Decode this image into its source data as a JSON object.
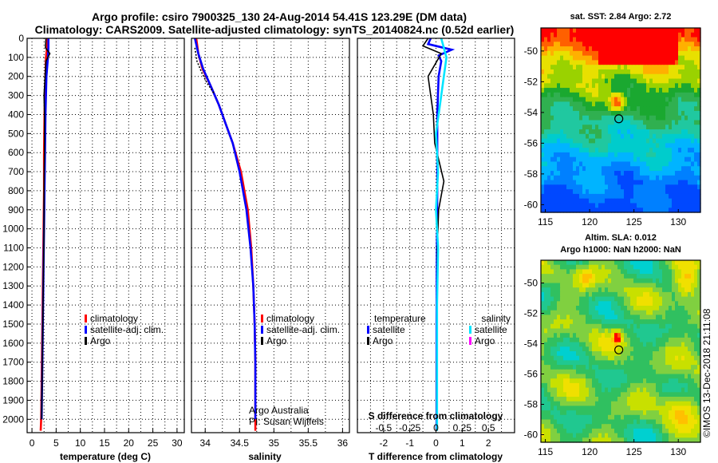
{
  "title_line1": "Argo profile: csiro 7900325_130 24-Aug-2014 54.41S 123.29E (DM data)",
  "title_line2": "Climatology: CARS2009. Satellite-adjusted climatology: synTS_20140824.nc (0.52d earlier)",
  "colors": {
    "climatology": "#ff0000",
    "satellite_adj": "#0000ff",
    "argo": "#000000",
    "salinity_satellite": "#00e5ff",
    "salinity_argo": "#ff00ff"
  },
  "chart_data": [
    {
      "type": "line",
      "name": "temperature",
      "xlabel": "temperature (deg C)",
      "ylabel": "",
      "xlim": [
        -1,
        31.5
      ],
      "ylim": [
        2070,
        0
      ],
      "xticks": [
        "0",
        "5",
        "10",
        "15",
        "20",
        "25",
        "30"
      ],
      "xtick_values": [
        0,
        5,
        10,
        15,
        20,
        25,
        30
      ],
      "yticks": [
        "0",
        "100",
        "200",
        "300",
        "400",
        "500",
        "600",
        "700",
        "800",
        "900",
        "1000",
        "1100",
        "1200",
        "1300",
        "1400",
        "1500",
        "1600",
        "1700",
        "1800",
        "1900",
        "2000"
      ],
      "legend": [
        "climatology",
        "satellite-adj. clim.",
        "Argo"
      ],
      "series": [
        {
          "name": "climatology",
          "color_key": "climatology",
          "x": [
            3.2,
            3.1,
            2.9,
            2.8,
            2.7,
            2.6,
            2.5,
            2.5,
            2.4,
            2.3,
            2.2,
            2.1,
            2.0,
            1.9,
            1.8
          ],
          "depth": [
            0,
            50,
            100,
            200,
            300,
            400,
            600,
            800,
            1000,
            1200,
            1400,
            1600,
            1800,
            2000,
            2060
          ]
        },
        {
          "name": "satellite-adj. clim.",
          "color_key": "satellite_adj",
          "x": [
            3.4,
            3.4,
            3.3,
            3.0,
            2.9,
            2.8,
            2.7,
            2.6,
            2.5,
            2.4,
            2.3,
            2.2,
            2.1,
            2.0
          ],
          "depth": [
            0,
            50,
            100,
            200,
            300,
            400,
            600,
            800,
            1000,
            1200,
            1400,
            1600,
            1800,
            2000
          ]
        },
        {
          "name": "Argo",
          "color_key": "argo",
          "x": [
            2.9,
            2.8,
            3.7,
            2.9,
            2.5,
            2.6,
            2.6,
            2.5,
            2.5,
            2.4,
            2.3,
            2.2,
            2.1,
            2.0
          ],
          "depth": [
            0,
            50,
            80,
            120,
            300,
            400,
            600,
            800,
            1000,
            1200,
            1400,
            1600,
            1800,
            2000
          ]
        }
      ]
    },
    {
      "type": "line",
      "name": "salinity",
      "xlabel": "salinity",
      "xlim": [
        33.8,
        36.1
      ],
      "ylim": [
        2070,
        0
      ],
      "xticks": [
        "34",
        "34.5",
        "35",
        "35.5",
        "36"
      ],
      "xtick_values": [
        34,
        34.5,
        35,
        35.5,
        36
      ],
      "legend": [
        "climatology",
        "satellite-adj. clim.",
        "Argo"
      ],
      "annotation": [
        "Argo Australia",
        "PI: Susan Wijffels"
      ],
      "series": [
        {
          "name": "climatology",
          "color_key": "climatology",
          "x": [
            33.87,
            33.9,
            33.96,
            34.08,
            34.2,
            34.3,
            34.4,
            34.52,
            34.62,
            34.67,
            34.7,
            34.72,
            34.73,
            34.73,
            34.73
          ],
          "depth": [
            0,
            80,
            160,
            250,
            350,
            450,
            550,
            700,
            900,
            1100,
            1300,
            1500,
            1700,
            1900,
            2060
          ]
        },
        {
          "name": "satellite-adj. clim.",
          "color_key": "satellite_adj",
          "x": [
            33.85,
            33.9,
            33.97,
            34.08,
            34.2,
            34.3,
            34.4,
            34.5,
            34.6,
            34.66,
            34.7,
            34.72,
            34.73,
            34.73
          ],
          "depth": [
            0,
            80,
            160,
            250,
            350,
            450,
            550,
            700,
            900,
            1100,
            1300,
            1500,
            1700,
            2000
          ]
        },
        {
          "name": "Argo",
          "color_key": "argo",
          "x": [
            33.85,
            33.88,
            33.95,
            34.02,
            34.13
          ],
          "depth": [
            50,
            120,
            180,
            230,
            290
          ]
        }
      ]
    },
    {
      "type": "line",
      "name": "difference",
      "xlabel": "T difference from climatology",
      "xlabel2": "S difference from climatology",
      "xlim": [
        -3,
        3
      ],
      "ylim": [
        2070,
        0
      ],
      "xticks": [
        "-2",
        "-1",
        "0",
        "1",
        "2"
      ],
      "xtick_values": [
        -2,
        -1,
        0,
        1,
        2
      ],
      "xticks2": [
        "-0.5",
        "-0.25",
        "0",
        "0.25",
        "0.5"
      ],
      "xtick2_values": [
        -0.5,
        -0.25,
        0,
        0.25,
        0.5
      ],
      "legend_titles": [
        "temperature",
        "salinity"
      ],
      "legend_left": [
        "satellite",
        "Argo"
      ],
      "legend_right": [
        "satellite",
        "Argo"
      ],
      "series": [
        {
          "name": "T satellite",
          "color_key": "satellite_adj",
          "x": [
            -0.2,
            -0.3,
            0.6,
            0.1,
            0.2,
            0.1,
            0.05,
            0.05,
            0.03,
            0.02,
            0.02,
            0.02,
            0.02
          ],
          "depth": [
            0,
            30,
            60,
            90,
            120,
            200,
            400,
            800,
            1200,
            1500,
            1800,
            2000,
            2060
          ]
        },
        {
          "name": "T Argo",
          "color_key": "argo",
          "x": [
            -0.3,
            -0.5,
            0.2,
            -0.3,
            -0.2,
            -0.1,
            -0.05,
            0.3,
            0.1,
            0.05,
            0.05,
            0.02,
            0.02
          ],
          "depth": [
            0,
            40,
            80,
            200,
            300,
            400,
            550,
            750,
            900,
            1100,
            1400,
            1700,
            2000
          ]
        },
        {
          "name": "S satellite",
          "color_key": "salinity_satellite",
          "x": [
            0.05,
            0.1,
            0.05,
            0.0,
            0.02,
            0.0,
            0.02,
            0.01,
            0.01,
            0.01
          ],
          "depth": [
            0,
            100,
            300,
            500,
            700,
            900,
            1100,
            1400,
            1700,
            2060
          ]
        },
        {
          "name": "S Argo",
          "color_key": "salinity_argo",
          "x": [
            0.0,
            0.0
          ],
          "depth": [
            0,
            0
          ]
        }
      ]
    },
    {
      "type": "heatmap",
      "name": "sst-map",
      "title": "sat. SST: 2.84 Argo: 2.72",
      "xlim": [
        114.5,
        132.5
      ],
      "ylim": [
        -60.5,
        -48.5
      ],
      "xticks": [
        "115",
        "120",
        "125",
        "130"
      ],
      "xtick_values": [
        115,
        120,
        125,
        130
      ],
      "yticks": [
        "-50",
        "-52",
        "-54",
        "-56",
        "-58",
        "-60"
      ],
      "ytick_values": [
        -50,
        -52,
        -54,
        -56,
        -58,
        -60
      ],
      "marker": {
        "lon": 123.29,
        "lat": -54.41
      }
    },
    {
      "type": "heatmap",
      "name": "sla-map",
      "title_line1": "Altim. SLA: 0.012",
      "title_line2": "Argo h1000: NaN h2000: NaN",
      "xlim": [
        114.5,
        132.5
      ],
      "ylim": [
        -60.5,
        -48.5
      ],
      "xticks": [
        "115",
        "120",
        "125",
        "130"
      ],
      "xtick_values": [
        115,
        120,
        125,
        130
      ],
      "yticks": [
        "-50",
        "-52",
        "-54",
        "-56",
        "-58",
        "-60"
      ],
      "ytick_values": [
        -50,
        -52,
        -54,
        -56,
        -58,
        -60
      ],
      "marker": {
        "lon": 123.29,
        "lat": -54.41
      }
    }
  ],
  "credit": "©IMOS 13-Dec-2018 21:11:08"
}
